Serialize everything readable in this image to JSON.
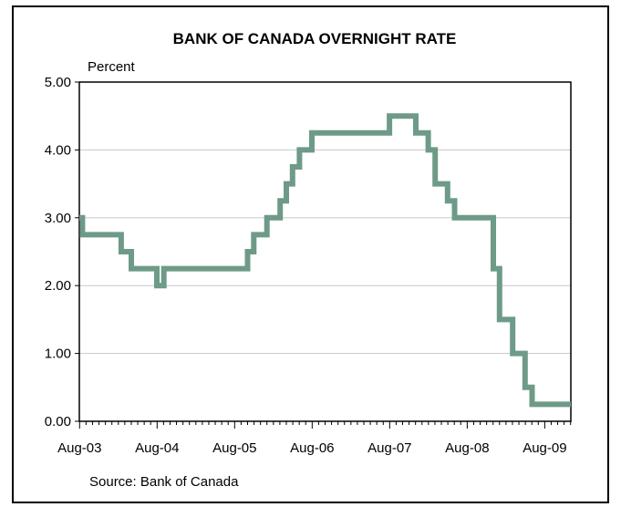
{
  "chart_data": {
    "type": "line",
    "title": "BANK OF CANADA OVERNIGHT RATE",
    "ylabel": "Percent",
    "xlabel": "",
    "source": "Source: Bank of Canada",
    "ylim": [
      0,
      5
    ],
    "yticks": [
      "0.00",
      "1.00",
      "2.00",
      "3.00",
      "4.00",
      "5.00"
    ],
    "xticks": [
      "Aug-03",
      "Aug-04",
      "Aug-05",
      "Aug-06",
      "Aug-07",
      "Aug-08",
      "Aug-09"
    ],
    "xlim": [
      2003.58,
      2009.92
    ],
    "grid": "horizontal",
    "line_color": "#6e9a88",
    "series": [
      {
        "name": "",
        "step": true,
        "x": [
          2003.58,
          2003.62,
          2004.0,
          2004.12,
          2004.25,
          2004.58,
          2004.67,
          2005.75,
          2005.83,
          2005.92,
          2006.0,
          2006.08,
          2006.17,
          2006.25,
          2006.33,
          2006.42,
          2006.58,
          2006.92,
          2007.5,
          2007.58,
          2007.67,
          2007.92,
          2008.08,
          2008.17,
          2008.25,
          2008.33,
          2008.42,
          2008.58,
          2008.67,
          2008.83,
          2008.92,
          2009.0,
          2009.17,
          2009.33,
          2009.42,
          2009.92
        ],
        "values": [
          3.0,
          2.75,
          2.75,
          2.5,
          2.25,
          2.0,
          2.25,
          2.5,
          2.75,
          2.75,
          3.0,
          3.0,
          3.25,
          3.5,
          3.75,
          4.0,
          4.25,
          4.25,
          4.25,
          4.5,
          4.5,
          4.25,
          4.0,
          3.5,
          3.5,
          3.25,
          3.0,
          3.0,
          3.0,
          3.0,
          2.25,
          1.5,
          1.0,
          0.5,
          0.25,
          0.25
        ]
      }
    ]
  }
}
